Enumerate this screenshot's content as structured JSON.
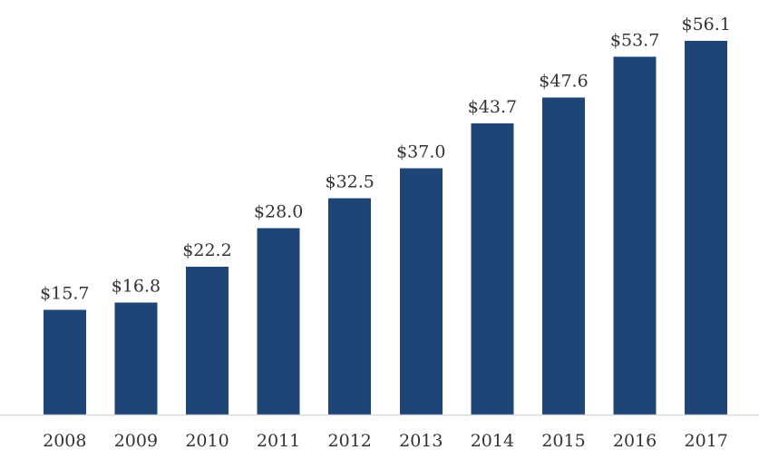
{
  "chart_data": {
    "type": "bar",
    "categories": [
      "2008",
      "2009",
      "2010",
      "2011",
      "2012",
      "2013",
      "2014",
      "2015",
      "2016",
      "2017"
    ],
    "values": [
      15.7,
      16.8,
      22.2,
      28.0,
      32.5,
      37.0,
      43.7,
      47.6,
      53.7,
      56.1
    ],
    "value_labels": [
      "$15.7",
      "$16.8",
      "$22.2",
      "$28.0",
      "$32.5",
      "$37.0",
      "$43.7",
      "$47.6",
      "$53.7",
      "$56.1"
    ],
    "title": "",
    "xlabel": "",
    "ylabel": "",
    "ylim": [
      0,
      58
    ],
    "grid": false,
    "legend": "none",
    "colors": {
      "bar": "#1f4577",
      "axis": "#d9d9d9",
      "text": "#333333"
    }
  }
}
